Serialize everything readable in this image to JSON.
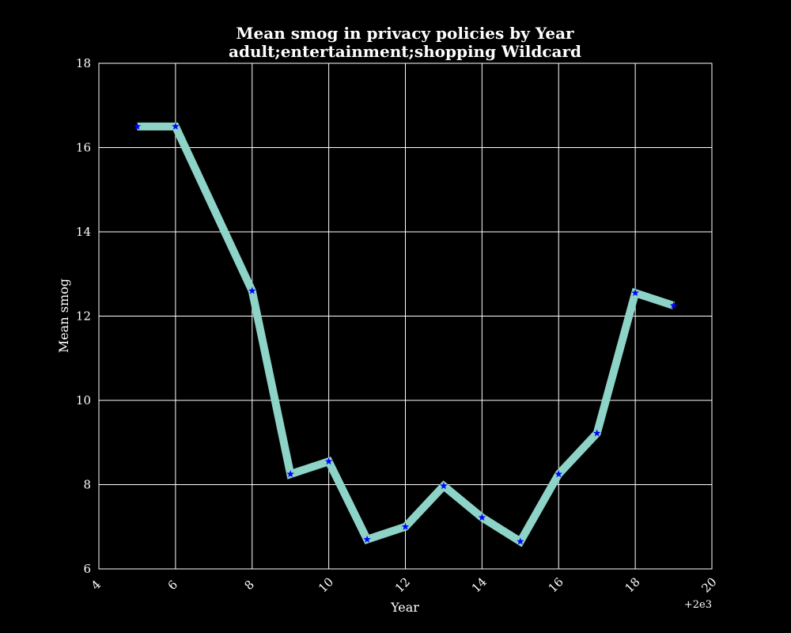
{
  "chart_data": {
    "type": "line",
    "title": "Mean smog in privacy policies by Year",
    "subtitle": "adult;entertainment;shopping Wildcard",
    "xlabel": "Year",
    "ylabel": "Mean smog",
    "x_offset_label": "+2e3",
    "xlim": [
      4,
      20
    ],
    "ylim": [
      6,
      18
    ],
    "xticks": [
      4,
      6,
      8,
      10,
      12,
      14,
      16,
      18,
      20
    ],
    "yticks": [
      6,
      8,
      10,
      12,
      14,
      16,
      18
    ],
    "grid": true,
    "series": [
      {
        "x": [
          5,
          6,
          8,
          9,
          10,
          11,
          12,
          13,
          14,
          15,
          16,
          17,
          18,
          19
        ],
        "y": [
          16.5,
          16.5,
          12.6,
          8.25,
          8.55,
          6.7,
          7.0,
          7.97,
          7.22,
          6.65,
          8.25,
          9.22,
          12.55,
          12.25
        ],
        "line_color": "#8dd3c7",
        "marker_color": "#0000ff",
        "marker": "star"
      }
    ]
  },
  "colors": {
    "background": "#000000",
    "foreground": "#ffffff"
  }
}
